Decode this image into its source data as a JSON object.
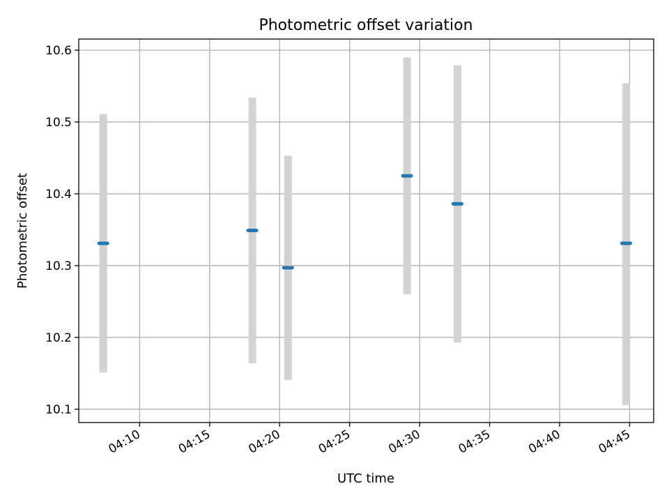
{
  "chart_data": {
    "type": "scatter",
    "title": "Photometric offset variation",
    "xlabel": "UTC time",
    "ylabel": "Photometric offset",
    "xlim": [
      "04:05:39",
      "04:46:43"
    ],
    "ylim": [
      10.0815,
      10.6155
    ],
    "grid": true,
    "x_ticks": [
      "04:10",
      "04:15",
      "04:20",
      "04:25",
      "04:30",
      "04:35",
      "04:40",
      "04:45"
    ],
    "y_ticks": [
      "10.1",
      "10.2",
      "10.3",
      "10.4",
      "10.5",
      "10.6"
    ],
    "points": [
      {
        "x": "04:07:24",
        "y": 10.331,
        "ylow": 10.151,
        "yhigh": 10.511
      },
      {
        "x": "04:18:03",
        "y": 10.349,
        "ylow": 10.164,
        "yhigh": 10.534
      },
      {
        "x": "04:20:36",
        "y": 10.297,
        "ylow": 10.141,
        "yhigh": 10.453
      },
      {
        "x": "04:29:06",
        "y": 10.425,
        "ylow": 10.26,
        "yhigh": 10.59
      },
      {
        "x": "04:32:42",
        "y": 10.386,
        "ylow": 10.193,
        "yhigh": 10.579
      },
      {
        "x": "04:44:45",
        "y": 10.331,
        "ylow": 10.106,
        "yhigh": 10.554
      }
    ],
    "colors": {
      "marker": "#1f77b4",
      "error_bar": "#d3d3d3",
      "grid": "#b0b0b0"
    }
  }
}
